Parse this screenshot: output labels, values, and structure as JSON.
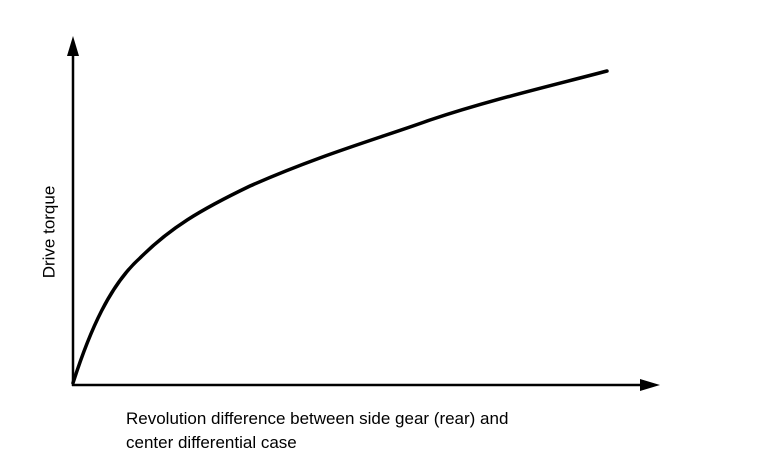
{
  "diagram": {
    "y_axis_label": "Drive torque",
    "x_axis_label": [
      "Revolution difference between side gear (rear) and",
      "center differential case"
    ]
  }
}
